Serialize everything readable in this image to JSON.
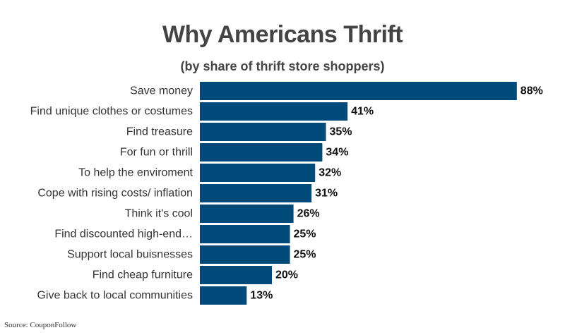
{
  "chart_data": {
    "type": "bar",
    "orientation": "horizontal",
    "title": "Why Americans Thrift",
    "subtitle": "(by share of thrift store shoppers)",
    "categories": [
      "Save money",
      "Find unique clothes or costumes",
      "Find treasure",
      "For fun or thrill",
      "To help the enviroment",
      "Cope with rising costs/ inflation",
      "Think it's cool",
      "Find discounted high-end…",
      "Support local buisnesses",
      "Find cheap furniture",
      "Give back to local communities"
    ],
    "values": [
      88,
      41,
      35,
      34,
      32,
      31,
      26,
      25,
      25,
      20,
      13
    ],
    "value_labels": [
      "88%",
      "41%",
      "35%",
      "34%",
      "32%",
      "31%",
      "26%",
      "25%",
      "25%",
      "20%",
      "13%"
    ],
    "unit": "%",
    "xlim": [
      0,
      100
    ],
    "grid": false,
    "legend": "none",
    "bar_color": "#004a7a"
  },
  "source": "Source: CouponFollow"
}
